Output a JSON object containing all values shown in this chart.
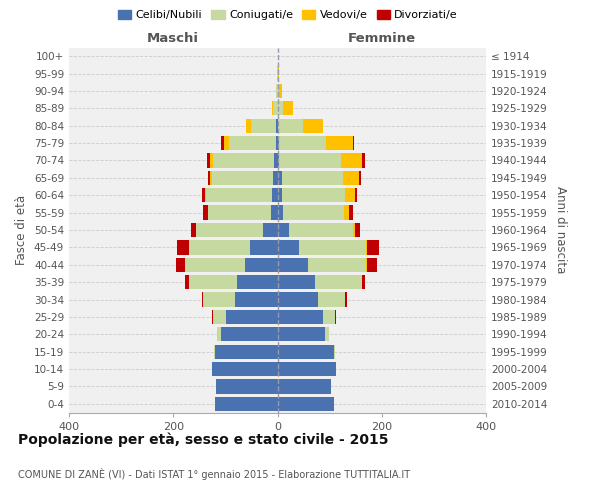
{
  "age_groups": [
    "0-4",
    "5-9",
    "10-14",
    "15-19",
    "20-24",
    "25-29",
    "30-34",
    "35-39",
    "40-44",
    "45-49",
    "50-54",
    "55-59",
    "60-64",
    "65-69",
    "70-74",
    "75-79",
    "80-84",
    "85-89",
    "90-94",
    "95-99",
    "100+"
  ],
  "birth_years": [
    "2010-2014",
    "2005-2009",
    "2000-2004",
    "1995-1999",
    "1990-1994",
    "1985-1989",
    "1980-1984",
    "1975-1979",
    "1970-1974",
    "1965-1969",
    "1960-1964",
    "1955-1959",
    "1950-1954",
    "1945-1949",
    "1940-1944",
    "1935-1939",
    "1930-1934",
    "1925-1929",
    "1920-1924",
    "1915-1919",
    "≤ 1914"
  ],
  "males": {
    "celibi": [
      120,
      118,
      125,
      120,
      108,
      98,
      82,
      78,
      62,
      52,
      28,
      13,
      10,
      8,
      6,
      3,
      2,
      0,
      0,
      0,
      0
    ],
    "coniugati": [
      0,
      0,
      0,
      2,
      8,
      25,
      60,
      92,
      115,
      118,
      128,
      120,
      128,
      118,
      118,
      90,
      48,
      8,
      2,
      1,
      0
    ],
    "vedovi": [
      0,
      0,
      0,
      0,
      0,
      0,
      0,
      0,
      0,
      0,
      1,
      1,
      2,
      3,
      5,
      10,
      10,
      3,
      1,
      0,
      0
    ],
    "divorziati": [
      0,
      0,
      0,
      0,
      0,
      2,
      3,
      8,
      18,
      22,
      8,
      8,
      4,
      5,
      6,
      5,
      0,
      0,
      0,
      0,
      0
    ]
  },
  "females": {
    "nubili": [
      108,
      102,
      112,
      108,
      92,
      88,
      78,
      72,
      58,
      42,
      22,
      10,
      8,
      8,
      3,
      2,
      0,
      0,
      0,
      0,
      0
    ],
    "coniugate": [
      0,
      0,
      0,
      2,
      6,
      22,
      52,
      90,
      112,
      128,
      122,
      118,
      122,
      118,
      118,
      92,
      48,
      10,
      3,
      1,
      0
    ],
    "vedove": [
      0,
      0,
      0,
      0,
      0,
      0,
      0,
      1,
      2,
      2,
      4,
      10,
      18,
      30,
      42,
      50,
      40,
      20,
      5,
      1,
      1
    ],
    "divorziate": [
      0,
      0,
      0,
      0,
      0,
      2,
      3,
      5,
      18,
      22,
      10,
      6,
      4,
      4,
      5,
      2,
      0,
      0,
      0,
      0,
      0
    ]
  },
  "colors": {
    "celibi": "#4a72b0",
    "coniugati": "#c5d9a0",
    "vedovi": "#ffc000",
    "divorziati": "#c00000"
  },
  "legend_labels": [
    "Celibi/Nubili",
    "Coniugati/e",
    "Vedovi/e",
    "Divorziati/e"
  ],
  "title": "Popolazione per età, sesso e stato civile - 2015",
  "subtitle": "COMUNE DI ZANÈ (VI) - Dati ISTAT 1° gennaio 2015 - Elaborazione TUTTITALIA.IT",
  "xlabel_left": "Maschi",
  "xlabel_right": "Femmine",
  "ylabel_left": "Fasce di età",
  "ylabel_right": "Anni di nascita",
  "xlim": 400,
  "background_color": "#ffffff",
  "grid_color": "#cccccc",
  "chart_bg": "#f0f0f0"
}
